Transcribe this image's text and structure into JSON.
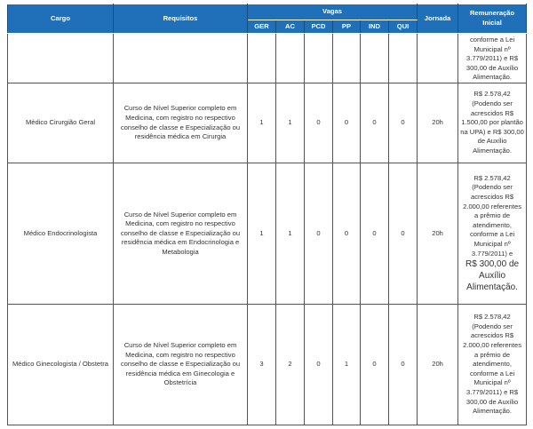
{
  "header": {
    "cargo": "Cargo",
    "requisitos": "Requisitos",
    "vagas": "Vagas",
    "jornada": "Jornada",
    "remuneracao": "Remuneração Inicial",
    "vagas_cols": [
      "GER",
      "AC",
      "PCD",
      "PP",
      "IND",
      "QUI"
    ]
  },
  "rows": [
    {
      "cargo": "",
      "requisitos": "",
      "vagas": [
        "",
        "",
        "",
        "",
        "",
        ""
      ],
      "jornada": "",
      "remuneracao": "conforme a Lei Municipal nº 3.779/2011) e R$ 300,00 de Auxílio Alimentação.",
      "remuneracao_big": ""
    },
    {
      "cargo": "Médico Cirurgião Geral",
      "requisitos": "Curso de Nível Superior completo em Medicina, com registro no respectivo conselho de classe e Especialização ou residência médica em Cirurgia",
      "vagas": [
        "1",
        "1",
        "0",
        "0",
        "0",
        "0"
      ],
      "jornada": "20h",
      "remuneracao": "R$ 2.578,42 (Podendo ser acrescidos R$ 1.500,00 por plantão na UPA) e R$ 300,00 de Auxílio Alimentação.",
      "remuneracao_big": ""
    },
    {
      "cargo": "Médico Endocrinologista",
      "requisitos": "Curso de Nível Superior completo em Medicina, com registro no respectivo conselho de classe e Especialização ou residência médica em Endocrinologia e Metabologia",
      "vagas": [
        "1",
        "1",
        "0",
        "0",
        "0",
        "0"
      ],
      "jornada": "20h",
      "remuneracao": "R$ 2.578,42 (Podendo ser acrescidos R$ 2.000,00 referentes a prêmio de atendimento, conforme a Lei Municipal nº 3.779/2011) e",
      "remuneracao_big": "R$ 300,00 de Auxílio Alimentação."
    },
    {
      "cargo": "Médico Ginecologista / Obstetra",
      "requisitos": "Curso de Nível Superior completo em Medicina, com registro no respectivo conselho de classe e Especialização ou residência médica em Ginecologia e Obstetrícia",
      "vagas": [
        "3",
        "2",
        "0",
        "1",
        "0",
        "0"
      ],
      "jornada": "20h",
      "remuneracao": "R$ 2.578,42 (Podendo ser acrescidos R$ 2.000,00 referentes a prêmio de atendimento, conforme a Lei Municipal nº 3.779/2011) e R$ 300,00 de Auxílio Alimentação.",
      "remuneracao_big": ""
    }
  ]
}
